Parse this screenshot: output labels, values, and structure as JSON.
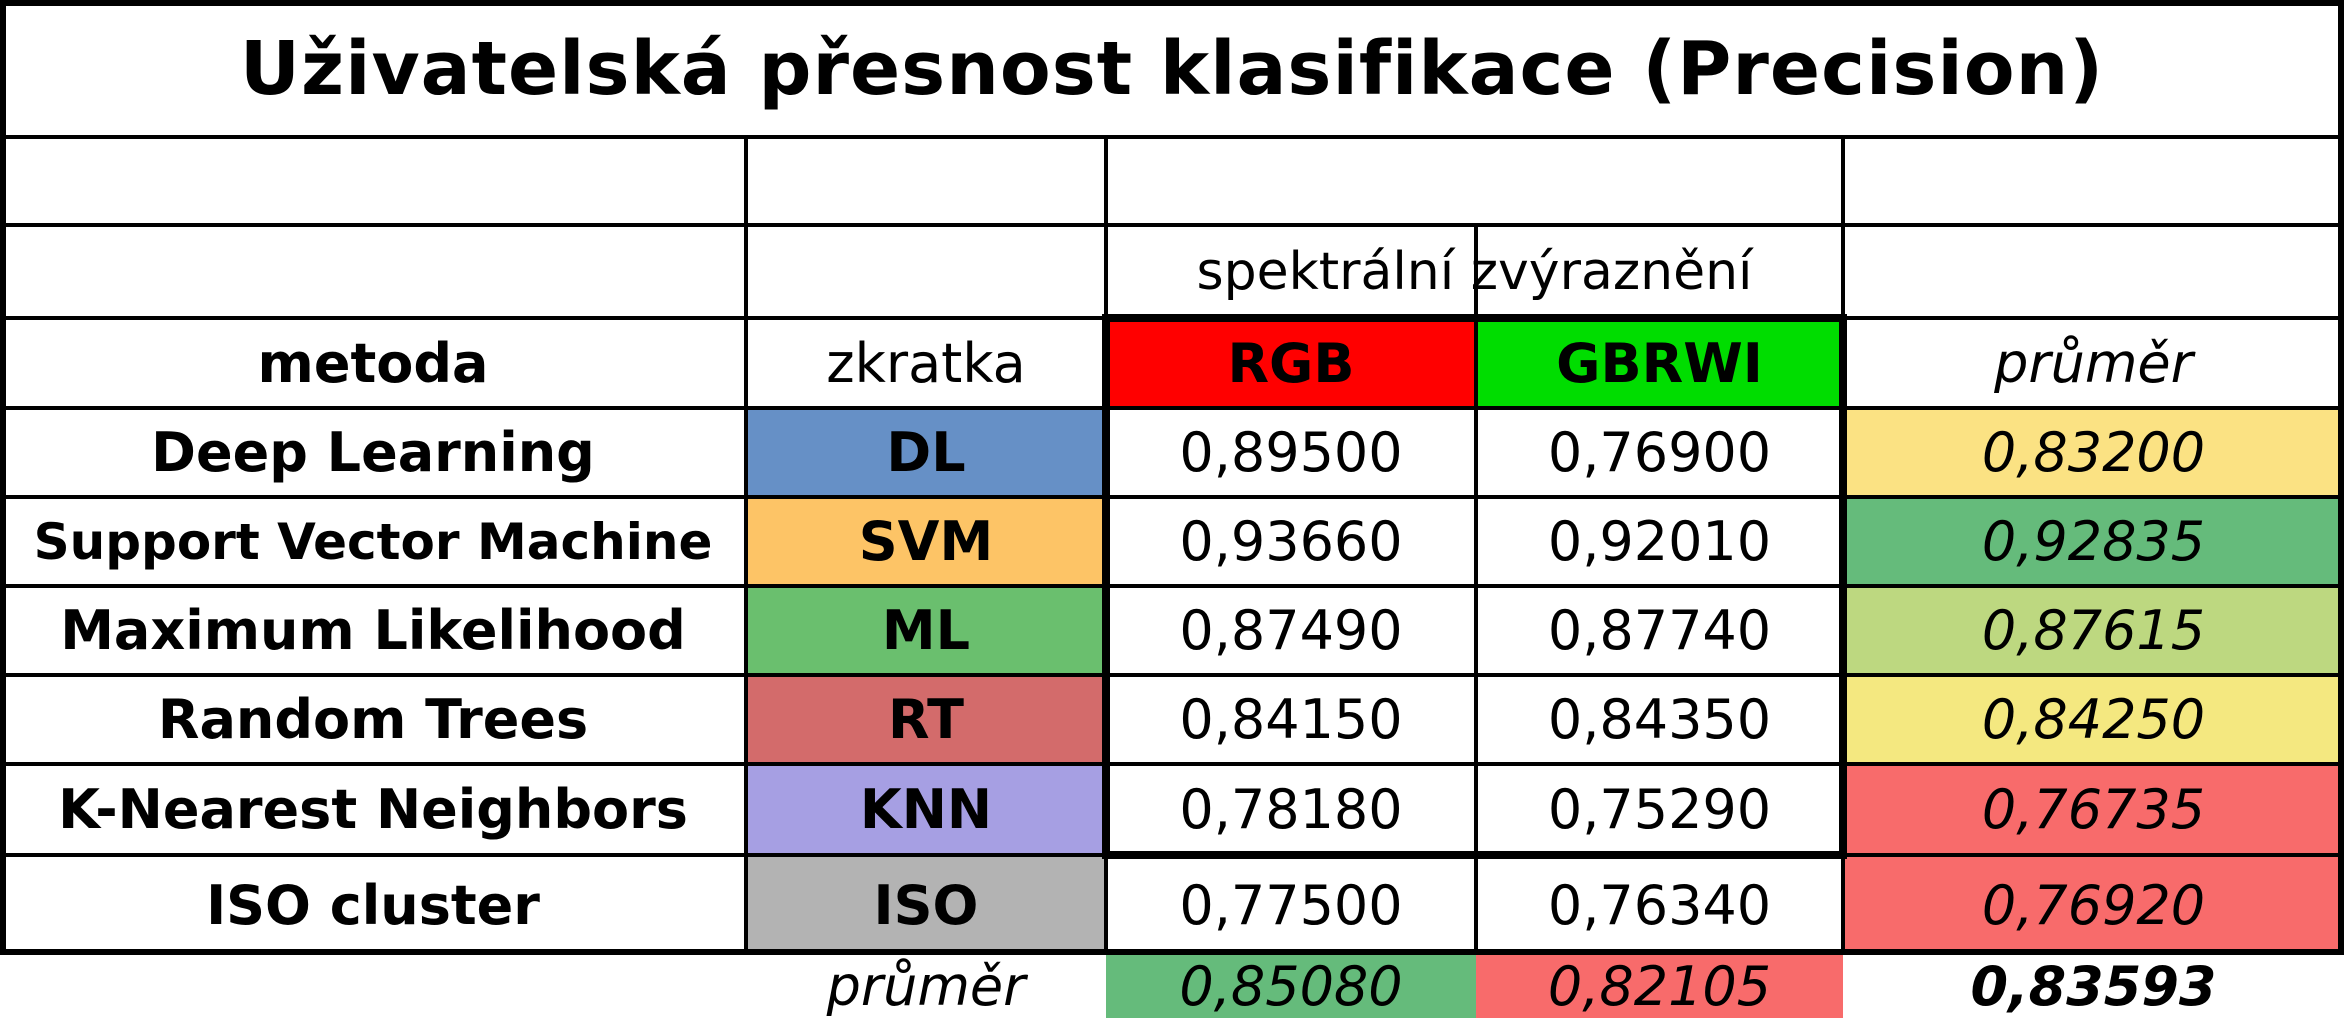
{
  "title": "Uživatelská přesnost klasifikace (Precision)",
  "header": {
    "group_label": "spektrální zvýraznění",
    "col_method": "metoda",
    "col_abbr": "zkratka",
    "col_rgb": "RGB",
    "col_gbrwi": "GBRWI",
    "col_mean": "průměr"
  },
  "rows": [
    {
      "method": "Deep Learning",
      "abbr": "DL",
      "rgb": "0,89500",
      "gbrwi": "0,76900",
      "mean": "0,83200"
    },
    {
      "method": "Support Vector Machine",
      "abbr": "SVM",
      "rgb": "0,93660",
      "gbrwi": "0,92010",
      "mean": "0,92835"
    },
    {
      "method": "Maximum Likelihood",
      "abbr": "ML",
      "rgb": "0,87490",
      "gbrwi": "0,87740",
      "mean": "0,87615"
    },
    {
      "method": "Random Trees",
      "abbr": "RT",
      "rgb": "0,84150",
      "gbrwi": "0,84350",
      "mean": "0,84250"
    },
    {
      "method": "K-Nearest Neighbors",
      "abbr": "KNN",
      "rgb": "0,78180",
      "gbrwi": "0,75290",
      "mean": "0,76735"
    },
    {
      "method": "ISO cluster",
      "abbr": "ISO",
      "rgb": "0,77500",
      "gbrwi": "0,76340",
      "mean": "0,76920"
    }
  ],
  "footer": {
    "label": "průměr",
    "rgb_mean": "0,85080",
    "gbrwi_mean": "0,82105",
    "overall_mean": "0,83593"
  },
  "colors": {
    "rgb_header": "#ff0000",
    "gbrwi_header": "#00dd00",
    "abbr": [
      "#6690c6",
      "#fdc466",
      "#6abf6e",
      "#d36b6b",
      "#a69fe3",
      "#b3b3b3"
    ],
    "mean": [
      "#fbe283",
      "#65bb7b",
      "#bdd880",
      "#f4e880",
      "#f86b6b",
      "#f86b6b"
    ],
    "footer_rgb": "#65bb7b",
    "footer_gbrwi": "#f86b6b"
  }
}
